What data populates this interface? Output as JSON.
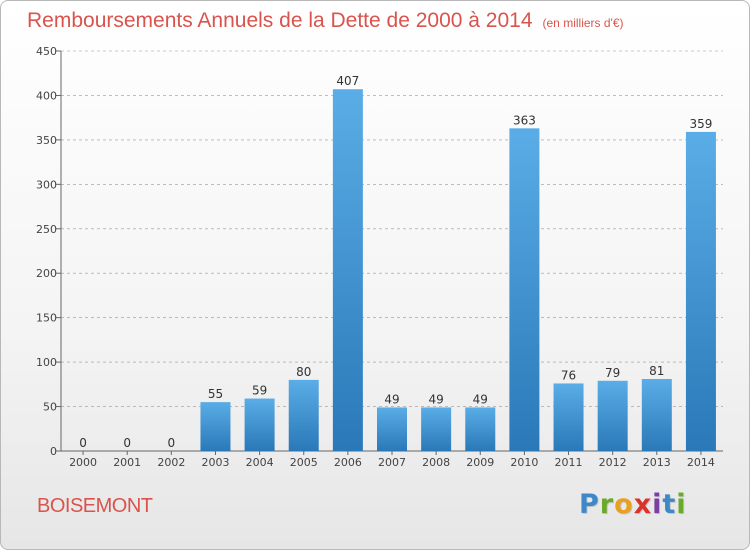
{
  "header": {
    "title": "Remboursements Annuels de la Dette de 2000 à 2014",
    "unit": "(en milliers d'€)"
  },
  "footer": {
    "commune": "BOISEMONT",
    "logo_letters": [
      "P",
      "r",
      "o",
      "x",
      "i",
      "t",
      "i"
    ],
    "logo_colors": [
      "#3e87c8",
      "#6aaa2a",
      "#e8a020",
      "#d9342b",
      "#7a3fa0",
      "#3e87c8",
      "#6aaa2a"
    ]
  },
  "colors": {
    "bar_top": "#5aade6",
    "bar_bottom": "#2a78b8",
    "grid": "#999999",
    "accent": "#d9544d"
  },
  "chart_data": {
    "type": "bar",
    "categories": [
      "2000",
      "2001",
      "2002",
      "2003",
      "2004",
      "2005",
      "2006",
      "2007",
      "2008",
      "2009",
      "2010",
      "2011",
      "2012",
      "2013",
      "2014"
    ],
    "values": [
      0,
      0,
      0,
      55,
      59,
      80,
      407,
      49,
      49,
      49,
      363,
      76,
      79,
      81,
      359
    ],
    "data_labels": [
      "0",
      "0",
      "0",
      "55",
      "59",
      "80",
      "407",
      "49",
      "49",
      "49",
      "363",
      "76",
      "79",
      "81",
      "359"
    ],
    "yticks": [
      0,
      50,
      100,
      150,
      200,
      250,
      300,
      350,
      400,
      450
    ],
    "ylim": [
      0,
      450
    ],
    "grid": true,
    "legend": "none"
  }
}
